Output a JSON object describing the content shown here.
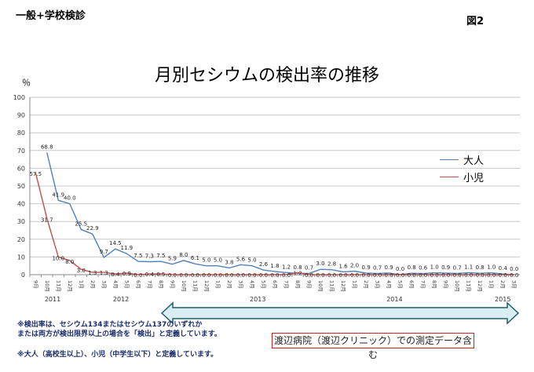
{
  "header": {
    "corner_title": "一般+学校検診",
    "figure_label": "図2"
  },
  "chart_data": {
    "type": "line",
    "title": "月別セシウムの検出率の推移",
    "ylabel": "％",
    "ylim": [
      0,
      100
    ],
    "yticks": [
      0,
      10,
      20,
      30,
      40,
      50,
      60,
      70,
      80,
      90,
      100
    ],
    "grid": true,
    "legend_position": "right",
    "categories": [
      "9月",
      "10月",
      "11月",
      "12月",
      "1月",
      "2月",
      "3月",
      "4月",
      "5月",
      "6月",
      "7月",
      "8月",
      "9月",
      "10月",
      "11月",
      "12月",
      "1月",
      "2月",
      "3月",
      "4月",
      "5月",
      "6月",
      "7月",
      "8月",
      "9月",
      "10月",
      "11月",
      "12月",
      "1月",
      "2月",
      "3月",
      "4月",
      "5月",
      "6月",
      "7月",
      "8月",
      "9月",
      "10月",
      "11月",
      "12月",
      "1月",
      "2月",
      "3月"
    ],
    "year_labels": [
      {
        "label": "2011",
        "at_index": 1.5
      },
      {
        "label": "2012",
        "at_index": 7.5
      },
      {
        "label": "2013",
        "at_index": 19.5
      },
      {
        "label": "2014",
        "at_index": 31.5
      },
      {
        "label": "2015",
        "at_index": 41
      }
    ],
    "series": [
      {
        "name": "大人",
        "color": "#4f81bd",
        "values": [
          null,
          68.8,
          41.9,
          40.0,
          25.5,
          22.9,
          9.7,
          14.5,
          11.9,
          7.5,
          7.3,
          7.5,
          5.9,
          8.0,
          6.1,
          5.0,
          5.0,
          3.8,
          5.6,
          5.0,
          2.6,
          1.8,
          1.2,
          0.8,
          0.7,
          3.0,
          2.8,
          1.6,
          2.0,
          0.9,
          0.7,
          0.9,
          0.0,
          0.8,
          0.6,
          1.0,
          0.9,
          0.7,
          1.1,
          0.8,
          1.0,
          0.4,
          0.0
        ],
        "labels": [
          "",
          "68.8",
          "41.9",
          "40.0",
          "25.5",
          "22.9",
          "9.7",
          "14.5",
          "11.9",
          "7.5",
          "7.3",
          "7.5",
          "5.9",
          "8.0",
          "6.1",
          "5.0",
          "5.0",
          "3.8",
          "5.6",
          "5.0",
          "2.6",
          "1.8",
          "1.2",
          "0.8",
          "0.7",
          "3.0",
          "2.8",
          "1.6",
          "2.0",
          "0.9",
          "0.7",
          "0.9",
          "0.0",
          "0.8",
          "0.6",
          "1.0",
          "0.9",
          "0.7",
          "1.1",
          "0.8",
          "1.0",
          "0.4",
          "0.0"
        ]
      },
      {
        "name": "小児",
        "color": "#c0504d",
        "values": [
          57.5,
          31.7,
          10.0,
          8.0,
          3.0,
          1.3,
          1.3,
          0.4,
          0.9,
          0.0,
          0.4,
          0.5,
          0.0,
          0.0,
          0.0,
          0.0,
          0.0,
          0.0,
          0.0,
          0.0,
          0.0,
          0.0,
          0.0,
          1.2,
          0.0,
          0.0,
          0.0,
          0.0,
          0.0,
          0.0,
          0.0,
          0.0,
          0.0,
          0.0,
          0.0,
          0.0,
          0.0,
          0.0,
          0.0,
          0.0,
          0.0,
          0.0,
          0.0
        ],
        "labels": [
          "57.5",
          "31.7",
          "10.0",
          "8.0",
          "3.0",
          "1.3",
          "1.3",
          "0.4",
          "0.9",
          "0.0",
          "0.4",
          "0.5",
          "0.0",
          "0.0",
          "0.0",
          "0.0",
          "0.0",
          "0.0",
          "0.0",
          "0.0",
          "0.0",
          "0.0",
          "0.0",
          "1.2",
          "0.0",
          "0.0",
          "0.0",
          "0.0",
          "0.0",
          "0.0",
          "0.0",
          "0.0",
          "0.0",
          "0.0",
          "0.0",
          "0.0",
          "0.0",
          "0.0",
          "0.0",
          "0.0",
          "0.0",
          "0.0",
          "0.0"
        ]
      }
    ]
  },
  "notes": {
    "line1": "※検出率は、セシウム134またはセシウム137のいずれか",
    "line2": "または両方が検出限界以上の場合を「検出」と定義しています。",
    "line3": "※大人（高校生以上）、小児（中学生以下）と定義しています。",
    "boxed": "渡辺病院（渡辺クリニック）での測定データ含む"
  }
}
